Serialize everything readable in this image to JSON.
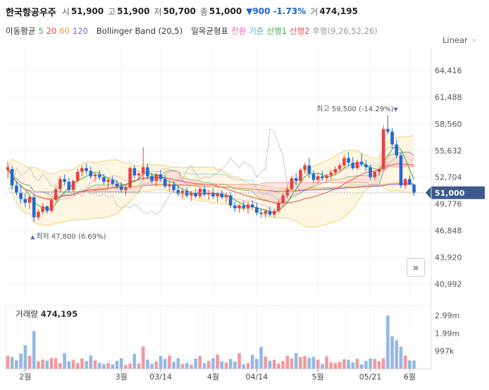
{
  "header": {
    "name": "한국항공우주",
    "open_label": "시",
    "open_value": "51,900",
    "high_label": "고",
    "high_value": "51,900",
    "low_label": "저",
    "low_value": "50,700",
    "close_label": "종",
    "close_value": "51,000",
    "change": "▼900 -1.73%",
    "volume_label": "거",
    "volume_value": "474,195"
  },
  "indicators": {
    "ma_label": "이동평균",
    "ma_periods": [
      {
        "text": "5",
        "color": "#2fae42"
      },
      {
        "text": "20",
        "color": "#e84a4a"
      },
      {
        "text": "60",
        "color": "#f0a040"
      },
      {
        "text": "120",
        "color": "#8a5ad0"
      }
    ],
    "bollinger": "Bollinger Band (20,5)",
    "ichimoku_label": "일목균형표",
    "ichimoku_items": [
      {
        "text": "전환",
        "color": "#e868b8"
      },
      {
        "text": "기준",
        "color": "#4ab0d0"
      },
      {
        "text": "선행1",
        "color": "#44aa55"
      },
      {
        "text": "선행2",
        "color": "#e05050"
      },
      {
        "text": "후행",
        "color": "#999999"
      }
    ],
    "ichimoku_params": "(9,26,52,26)"
  },
  "scale_mode": "Linear",
  "expand_icon": "double-chevron-right-icon",
  "volume_title": "거래량",
  "volume_value": "474,195",
  "chart_data": {
    "type": "candlestick",
    "price_axis": {
      "ticks": [
        64416,
        61488,
        58560,
        55632,
        52704,
        49776,
        46848,
        43920,
        40992
      ],
      "tick_labels": [
        "64,416",
        "61,488",
        "58,560",
        "55,632",
        "52,704",
        "49,776",
        "46,848",
        "43,920",
        "40,992"
      ],
      "range": [
        39700,
        66900
      ]
    },
    "current_price": {
      "value": 51000,
      "label": "51,000",
      "color": "#3d5a8c"
    },
    "annotations": [
      {
        "text": "최고 59,500 (-14.29%)",
        "index": 88,
        "price": 59500,
        "marker": "▼"
      },
      {
        "text": "최저 47,800 (6.69%)",
        "index": 6,
        "price": 47800,
        "marker": "▲"
      }
    ],
    "x_axis": [
      {
        "label": "2월",
        "index": 4
      },
      {
        "label": "3월",
        "index": 26
      },
      {
        "label": "03/14",
        "index": 35
      },
      {
        "label": "4월",
        "index": 47
      },
      {
        "label": "04/14",
        "index": 57
      },
      {
        "label": "5월",
        "index": 71
      },
      {
        "label": "05/21",
        "index": 83
      },
      {
        "label": "6월",
        "index": 92
      }
    ],
    "candles": [
      [
        53500,
        54400,
        52600,
        53800
      ],
      [
        53600,
        53900,
        51400,
        51800
      ],
      [
        51800,
        52300,
        50700,
        51000
      ],
      [
        51000,
        51800,
        49800,
        50300
      ],
      [
        50300,
        51000,
        49400,
        49900
      ],
      [
        49900,
        50700,
        49200,
        50500
      ],
      [
        50500,
        50800,
        47800,
        48300
      ],
      [
        48300,
        49200,
        48000,
        48900
      ],
      [
        48900,
        49900,
        48600,
        49500
      ],
      [
        49500,
        49600,
        48700,
        49000
      ],
      [
        49000,
        50400,
        48800,
        50200
      ],
      [
        50200,
        51700,
        50000,
        51400
      ],
      [
        51400,
        52800,
        51100,
        52500
      ],
      [
        52500,
        53000,
        51800,
        52200
      ],
      [
        52200,
        52600,
        51000,
        51300
      ],
      [
        51300,
        52500,
        51000,
        52300
      ],
      [
        52300,
        53600,
        52100,
        53300
      ],
      [
        53300,
        54000,
        52800,
        53700
      ],
      [
        53700,
        54200,
        53000,
        53400
      ],
      [
        53400,
        53900,
        52500,
        52800
      ],
      [
        52800,
        53200,
        52200,
        53000
      ],
      [
        53000,
        53500,
        52400,
        52700
      ],
      [
        52700,
        53100,
        51900,
        52200
      ],
      [
        52200,
        52600,
        51600,
        52400
      ],
      [
        52400,
        52800,
        51800,
        52000
      ],
      [
        52000,
        52400,
        51400,
        51700
      ],
      [
        51700,
        52200,
        51000,
        51300
      ],
      [
        51300,
        51800,
        50700,
        51600
      ],
      [
        51600,
        53900,
        51400,
        53700
      ],
      [
        53700,
        54000,
        52600,
        52900
      ],
      [
        52900,
        53400,
        52300,
        53100
      ],
      [
        53100,
        56000,
        52400,
        53800
      ],
      [
        53800,
        54200,
        52500,
        52800
      ],
      [
        52800,
        53200,
        52000,
        52300
      ],
      [
        52300,
        53200,
        51700,
        53000
      ],
      [
        53000,
        53500,
        52200,
        52500
      ],
      [
        52500,
        52900,
        51500,
        51700
      ],
      [
        51700,
        52200,
        51100,
        51900
      ],
      [
        51900,
        52300,
        51000,
        51300
      ],
      [
        51300,
        51800,
        50600,
        50900
      ],
      [
        50900,
        51500,
        50300,
        51200
      ],
      [
        51200,
        51600,
        50500,
        50700
      ],
      [
        50700,
        51200,
        50100,
        51000
      ],
      [
        51000,
        51400,
        50400,
        50600
      ],
      [
        50600,
        51600,
        50300,
        51400
      ],
      [
        51400,
        51800,
        50600,
        50800
      ],
      [
        50800,
        51300,
        50200,
        51000
      ],
      [
        51000,
        51500,
        50300,
        50600
      ],
      [
        50600,
        51100,
        50000,
        50900
      ],
      [
        50900,
        51300,
        50300,
        50500
      ],
      [
        50500,
        51000,
        49900,
        50700
      ],
      [
        50700,
        51000,
        49300,
        49600
      ],
      [
        49600,
        50000,
        48900,
        49300
      ],
      [
        49300,
        49800,
        48800,
        49600
      ],
      [
        49600,
        50100,
        49000,
        49300
      ],
      [
        49300,
        50000,
        48700,
        49700
      ],
      [
        49700,
        50200,
        49200,
        49400
      ],
      [
        49400,
        49900,
        48500,
        48800
      ],
      [
        48800,
        49300,
        48300,
        48700
      ],
      [
        48700,
        49200,
        48200,
        49000
      ],
      [
        49000,
        49500,
        48400,
        48600
      ],
      [
        48600,
        49200,
        48300,
        49000
      ],
      [
        49000,
        50200,
        48800,
        49900
      ],
      [
        49900,
        51000,
        49500,
        50700
      ],
      [
        50700,
        51700,
        50400,
        51400
      ],
      [
        51400,
        52900,
        51200,
        52600
      ],
      [
        52600,
        53200,
        51900,
        52300
      ],
      [
        52300,
        53700,
        52100,
        53500
      ],
      [
        53500,
        54300,
        53100,
        54000
      ],
      [
        54000,
        54800,
        52600,
        53100
      ],
      [
        53100,
        53500,
        52100,
        52400
      ],
      [
        52400,
        53100,
        52000,
        52800
      ],
      [
        52800,
        53400,
        52300,
        52600
      ],
      [
        52600,
        53100,
        52300,
        52900
      ],
      [
        52900,
        53500,
        52500,
        53200
      ],
      [
        53200,
        53900,
        52900,
        53600
      ],
      [
        53600,
        54300,
        53400,
        54000
      ],
      [
        54000,
        55100,
        53700,
        54800
      ],
      [
        54800,
        55500,
        53900,
        54300
      ],
      [
        54300,
        54900,
        53500,
        53700
      ],
      [
        53700,
        54600,
        53500,
        54400
      ],
      [
        54400,
        55300,
        53900,
        54100
      ],
      [
        54100,
        54600,
        53400,
        53800
      ],
      [
        53800,
        54100,
        52400,
        52700
      ],
      [
        52700,
        53400,
        52400,
        53300
      ],
      [
        53300,
        53800,
        52900,
        53600
      ],
      [
        53600,
        58400,
        53400,
        58000
      ],
      [
        58000,
        59500,
        57400,
        57700
      ],
      [
        57700,
        58100,
        55900,
        56300
      ],
      [
        56300,
        56800,
        54800,
        55100
      ],
      [
        55100,
        55400,
        51500,
        51800
      ],
      [
        51800,
        52600,
        51400,
        52500
      ],
      [
        52500,
        52900,
        51800,
        51900
      ],
      [
        51900,
        51900,
        50700,
        51000
      ]
    ],
    "volume_axis": {
      "tick_labels": [
        "2.99m",
        "1.99m",
        "997k"
      ],
      "ticks": [
        2990000,
        1990000,
        997000
      ],
      "max": 3550000
    },
    "volume": [
      740000,
      660000,
      480000,
      860000,
      1320000,
      740000,
      2120000,
      420000,
      520000,
      460000,
      610000,
      600000,
      320000,
      880000,
      420000,
      500000,
      330000,
      580000,
      430000,
      760000,
      480000,
      330000,
      260000,
      320000,
      250000,
      450000,
      600000,
      220000,
      300000,
      840000,
      300000,
      1250000,
      520000,
      290000,
      410000,
      730000,
      550000,
      740000,
      390000,
      600000,
      270000,
      330000,
      230000,
      580000,
      720000,
      320000,
      450000,
      600000,
      800000,
      420000,
      350000,
      560000,
      410000,
      880000,
      260000,
      330000,
      780000,
      560000,
      1230000,
      690000,
      460000,
      510000,
      300000,
      440000,
      740000,
      580000,
      880000,
      660000,
      720000,
      610000,
      680000,
      520000,
      260000,
      700000,
      370000,
      330000,
      400000,
      540000,
      510000,
      370000,
      560000,
      260000,
      450000,
      580000,
      560000,
      430000,
      590000,
      3000000,
      1830000,
      1600000,
      1230000,
      750000,
      474195,
      474195
    ]
  }
}
